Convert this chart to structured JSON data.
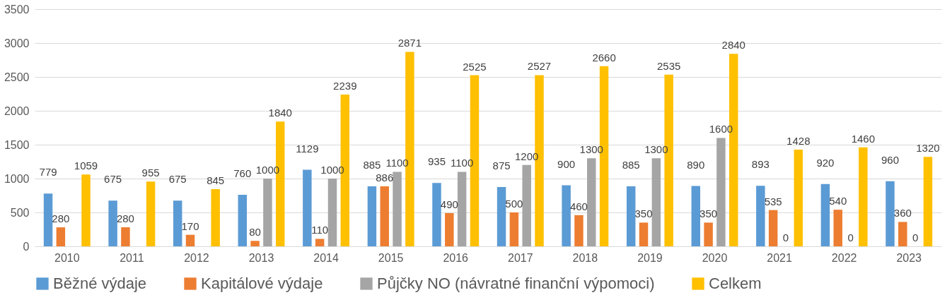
{
  "chart_data": {
    "type": "bar",
    "categories": [
      "2010",
      "2011",
      "2012",
      "2013",
      "2014",
      "2015",
      "2016",
      "2017",
      "2018",
      "2019",
      "2020",
      "2021",
      "2022",
      "2023"
    ],
    "series": [
      {
        "name": "Běžné výdaje",
        "color": "#5b9bd5",
        "values": [
          779,
          675,
          675,
          760,
          1129,
          885,
          935,
          875,
          900,
          885,
          890,
          893,
          920,
          960
        ]
      },
      {
        "name": "Kapitálové výdaje",
        "color": "#ed7d31",
        "values": [
          280,
          280,
          170,
          80,
          110,
          886,
          490,
          500,
          460,
          350,
          350,
          535,
          540,
          360
        ]
      },
      {
        "name": "Půjčky NO (návratné finanční výpomoci)",
        "color": "#a5a5a5",
        "values": [
          null,
          null,
          null,
          1000,
          1000,
          1100,
          1100,
          1200,
          1300,
          1300,
          1600,
          0,
          0,
          0
        ]
      },
      {
        "name": "Celkem",
        "color": "#ffc000",
        "values": [
          1059,
          955,
          845,
          1840,
          2239,
          2871,
          2525,
          2527,
          2660,
          2535,
          2840,
          1428,
          1460,
          1320
        ]
      }
    ],
    "ylim": [
      0,
      3500
    ],
    "yticks": [
      0,
      500,
      1000,
      1500,
      2000,
      2500,
      3000,
      3500
    ],
    "grid": "y",
    "legend": "bottom",
    "data_labels": true
  }
}
